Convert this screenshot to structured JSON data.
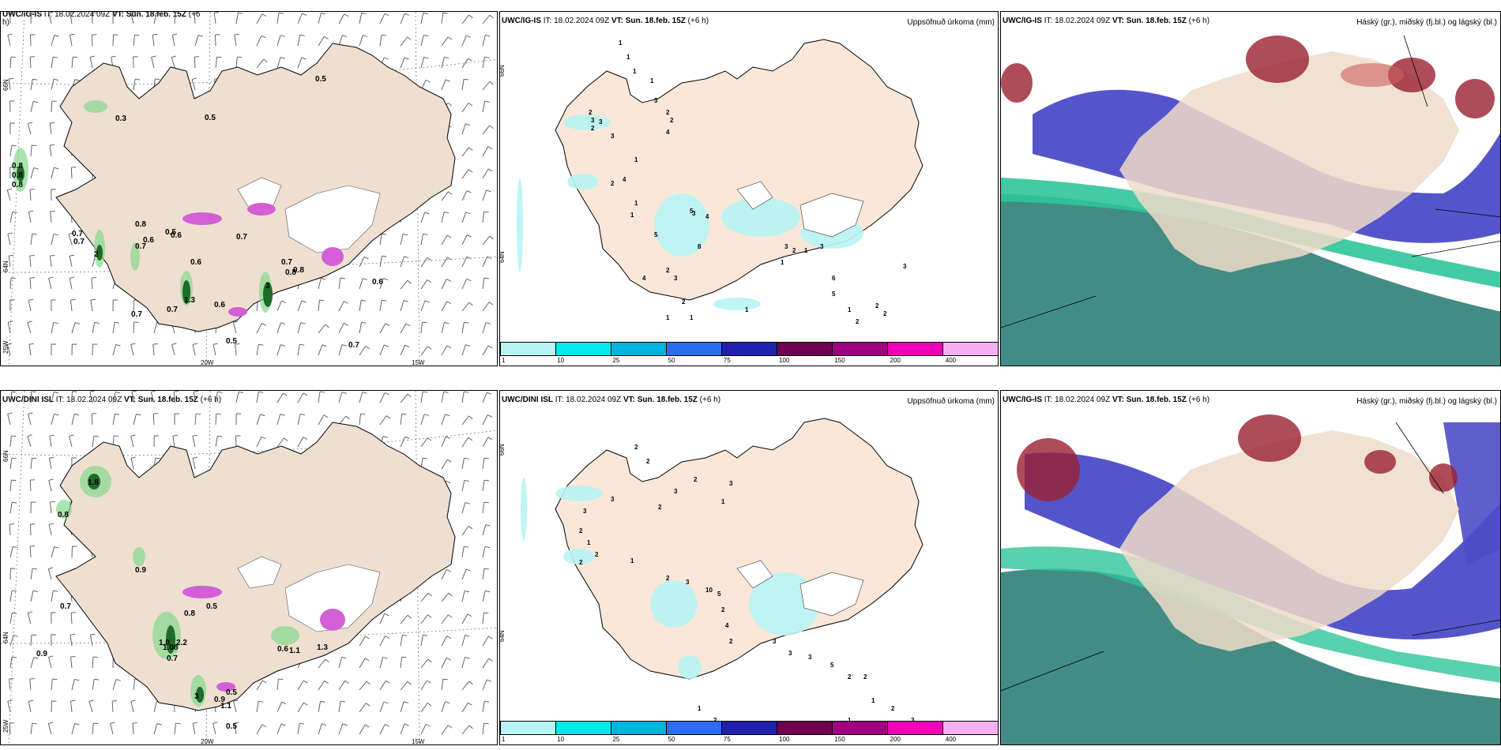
{
  "panels": {
    "top_left": {
      "hdr_model": "UWC/IG-IS",
      "hdr_it": "IT: 18.02.2024 09Z",
      "hdr_vt": "VT: Sun. 18.feb. 15Z",
      "hdr_lead": "(+6",
      "hdr_lead2": "h)"
    },
    "top_mid": {
      "hdr_model": "UWC/IG-IS",
      "hdr_it": "IT: 18.02.2024 09Z",
      "hdr_vt": "VT: Sun. 18.feb. 15Z",
      "hdr_lead": "(+6 h)",
      "title_right": "Uppsöfnuð úrkoma (mm)"
    },
    "top_right": {
      "hdr_model": "UWC/IG-IS",
      "hdr_it": "IT: 18.02.2024 09Z",
      "hdr_vt": "VT: Sun. 18.feb. 15Z",
      "hdr_lead": "(+6 h)",
      "title_right": "Háský (gr.), miðský (fj.bl.) og lágský (bl.)"
    },
    "bot_left": {
      "hdr_model": "UWC/DINI ISL",
      "hdr_it": "IT: 18.02.2024 09Z",
      "hdr_vt": "VT: Sun. 18.feb. 15Z",
      "hdr_lead": "(+6 h)"
    },
    "bot_mid": {
      "hdr_model": "UWC/DINI ISL",
      "hdr_it": "IT: 18.02.2024 09Z",
      "hdr_vt": "VT: Sun. 18.feb. 15Z",
      "hdr_lead": "(+6 h)",
      "title_right": "Uppsöfnuð úrkoma (mm)"
    },
    "bot_right": {
      "hdr_model": "UWC/IG-IS",
      "hdr_it": "IT: 18.02.2024 09Z",
      "hdr_vt": "VT: Sun. 18.feb. 15Z",
      "hdr_lead": "(+6 h)",
      "title_right": "Háský (gr.), miðský (fj.bl.) og lágský (bl.)"
    }
  },
  "grid_labels": {
    "lat66": "66N",
    "lat64": "64N",
    "lat_bottom": "25W",
    "lon20": "20W",
    "lon15": "15W"
  },
  "colorbar": {
    "ticks": [
      "1",
      "10",
      "25",
      "50",
      "75",
      "100",
      "150",
      "200",
      "400"
    ],
    "colors": [
      "#b8f4f4",
      "#00e8e8",
      "#00b4e0",
      "#2c6cf0",
      "#2020b0",
      "#700050",
      "#a00080",
      "#f000b8",
      "#f4b0f0"
    ]
  },
  "values": {
    "tl": [
      "0.5",
      "0.5",
      "0.3",
      "0.8",
      "0.8",
      "0.8",
      "0.7",
      "0.7",
      "0.8",
      "0.7",
      "2",
      "0.5",
      "0.6",
      "0.6",
      "0.7",
      "0.6",
      "0.8",
      "0.7",
      "0.8",
      "1.3",
      "0.7",
      "0.7",
      "3",
      "0.6",
      "0.5",
      "0.7",
      "0.6"
    ],
    "bl": [
      "1.8",
      "0.8",
      "0.9",
      "0.7",
      "0.9",
      "0.5",
      "0.8",
      "1.0",
      "2.2",
      "1.08",
      "0.7",
      "0.6",
      "1.1",
      "1.3",
      "3",
      "0.5",
      "0.9",
      "1.1",
      "0.5"
    ],
    "tm": [
      "1",
      "1",
      "1",
      "2",
      "3",
      "3",
      "2",
      "3",
      "1",
      "3",
      "2",
      "2",
      "4",
      "1",
      "4",
      "2",
      "1",
      "5",
      "3",
      "4",
      "1",
      "5",
      "8",
      "2",
      "4",
      "3",
      "2",
      "1",
      "3",
      "2",
      "1",
      "3",
      "6",
      "5",
      "1",
      "2",
      "2",
      "2",
      "3",
      "1",
      "1",
      "1"
    ],
    "bm": [
      "2",
      "2",
      "3",
      "2",
      "3",
      "2",
      "3",
      "1",
      "3",
      "2",
      "1",
      "2",
      "2",
      "1",
      "2",
      "3",
      "10",
      "5",
      "2",
      "4",
      "2",
      "3",
      "3",
      "3",
      "5",
      "2",
      "2",
      "1",
      "2",
      "3",
      "1",
      "2",
      "1",
      "1",
      "1",
      "1"
    ]
  }
}
